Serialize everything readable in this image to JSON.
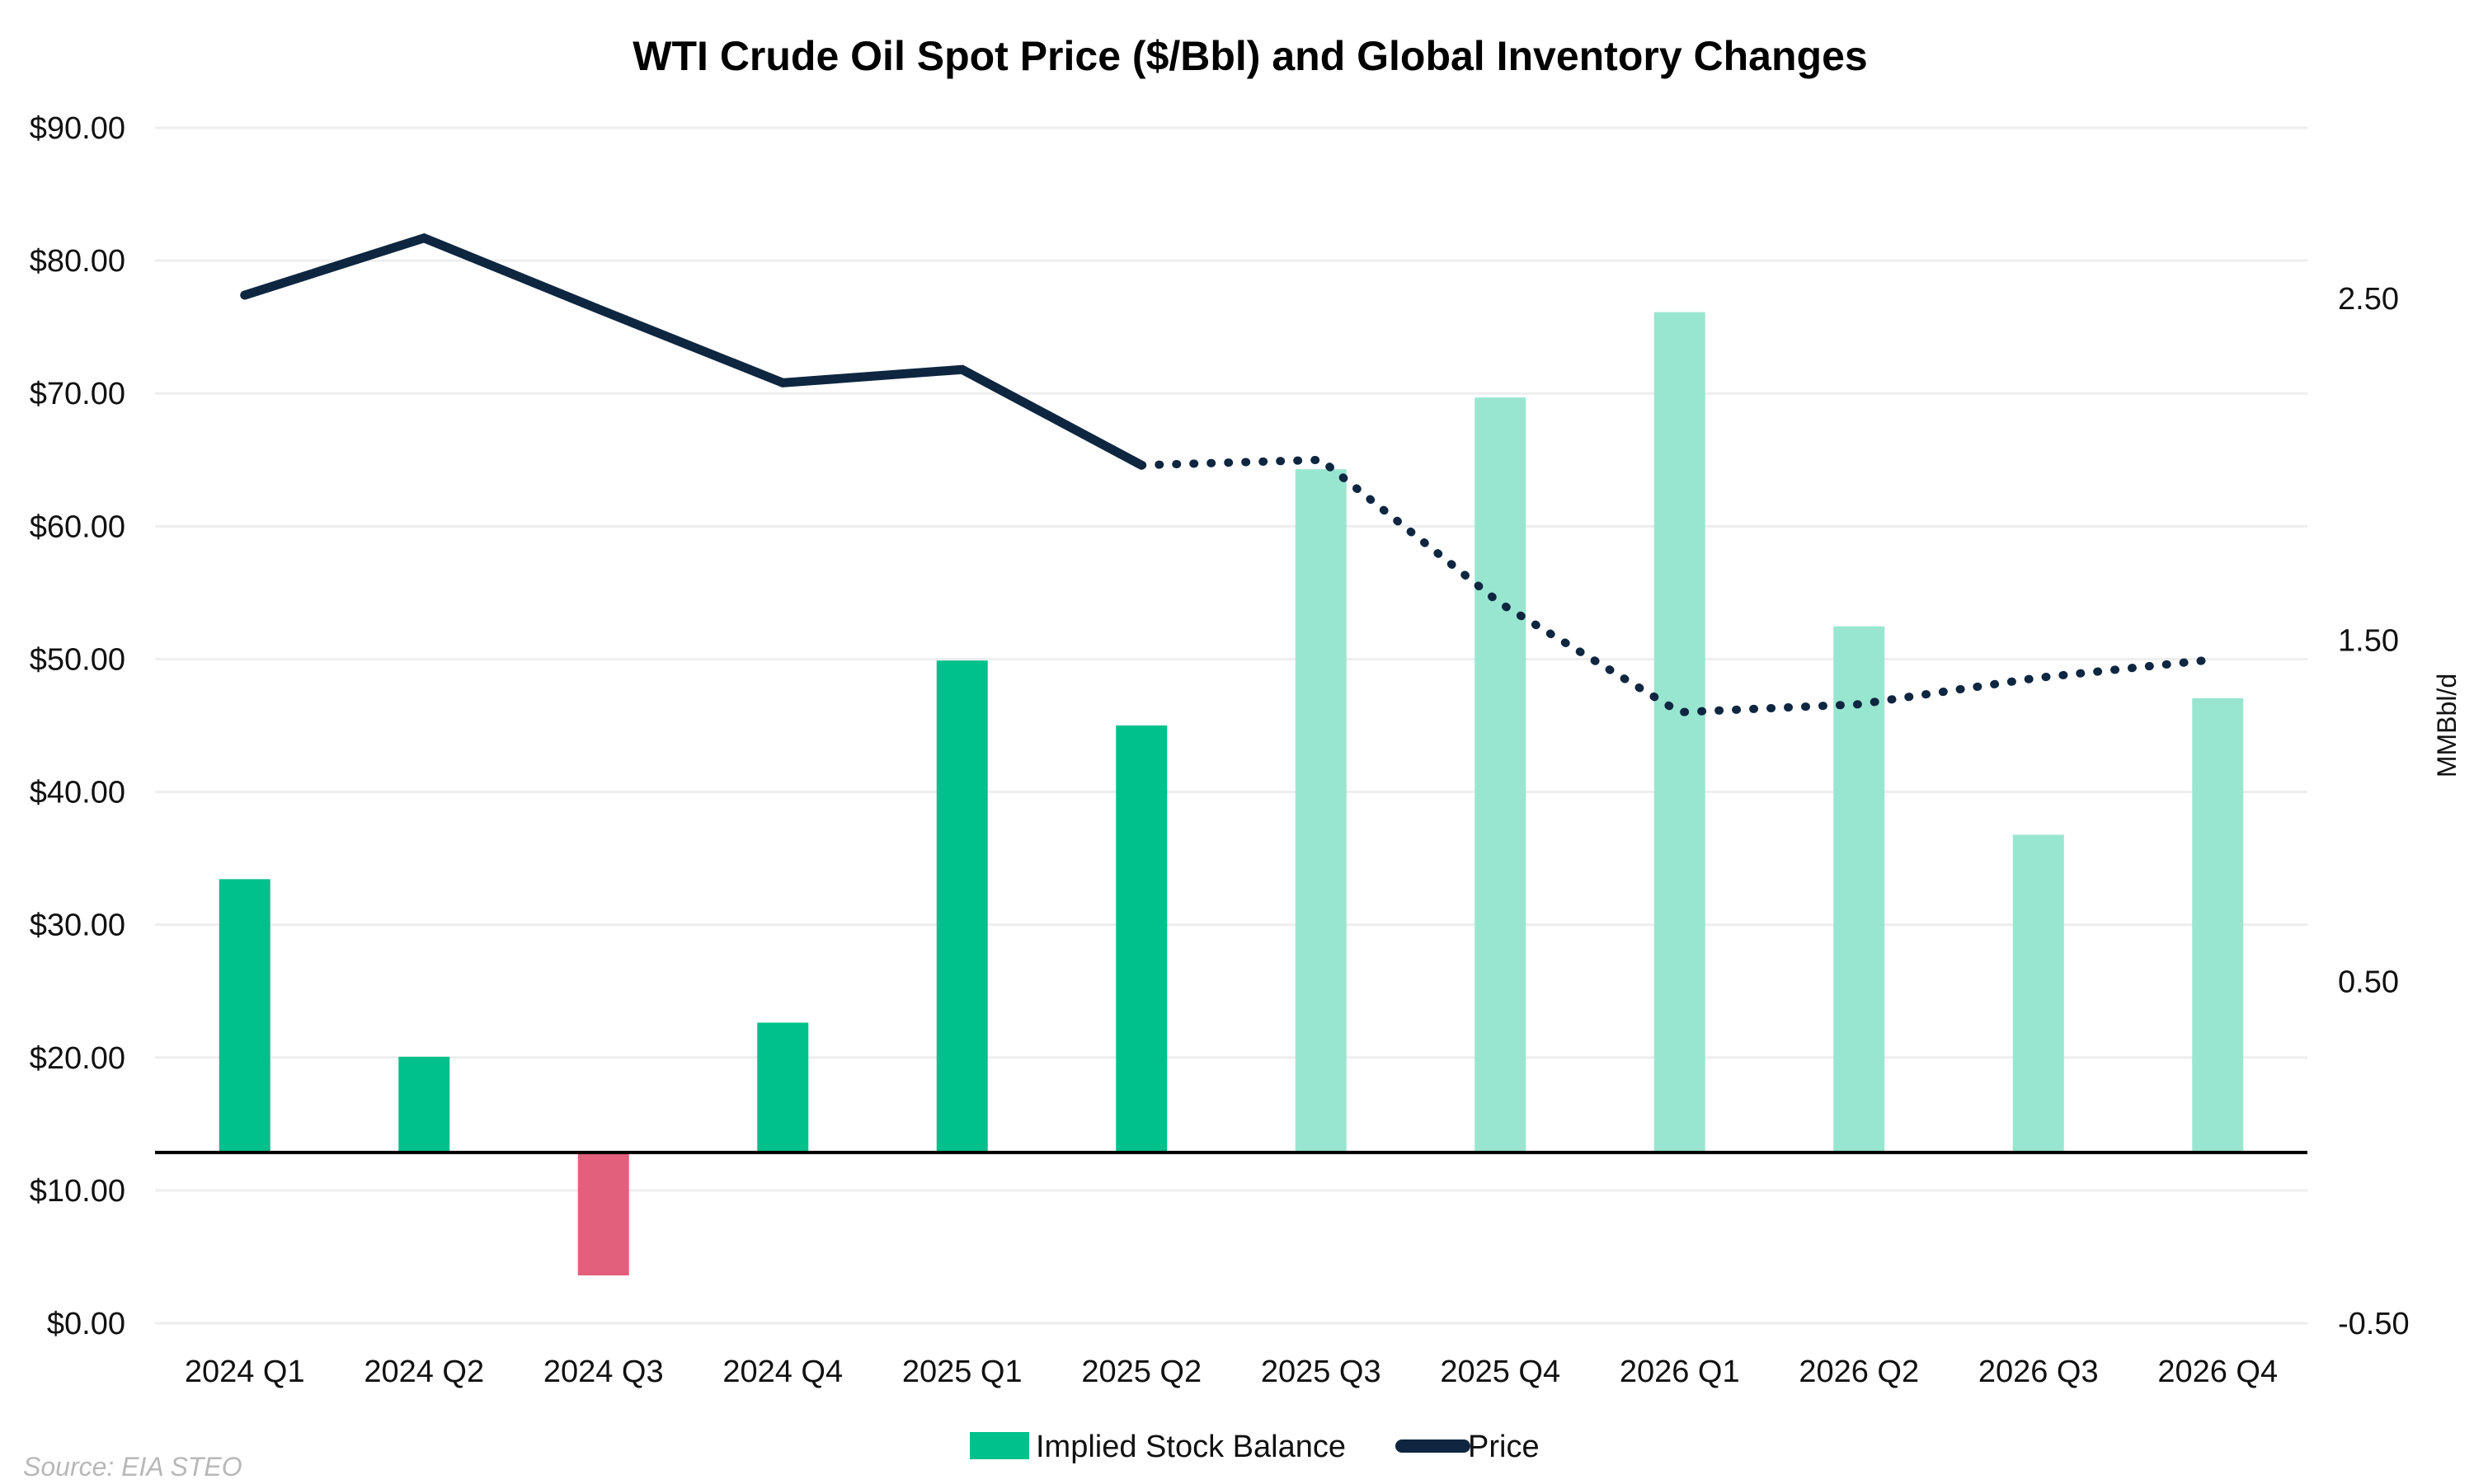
{
  "chart_data": {
    "type": "bar",
    "title": "WTI Crude Oil Spot Price ($/Bbl) and Global Inventory Changes",
    "xlabel": "",
    "ylabel_left": "",
    "ylabel_right": "MMBbl/d",
    "categories": [
      "2024 Q1",
      "2024 Q2",
      "2024 Q3",
      "2024 Q4",
      "2025 Q1",
      "2025 Q2",
      "2025 Q3",
      "2025 Q4",
      "2026 Q1",
      "2026 Q2",
      "2026 Q3",
      "2026 Q4"
    ],
    "left_axis": {
      "ylim": [
        0,
        90
      ],
      "ticks": [
        0,
        10,
        20,
        30,
        40,
        50,
        60,
        70,
        80,
        90
      ],
      "tick_labels": [
        "$0.00",
        "$10.00",
        "$20.00",
        "$30.00",
        "$40.00",
        "$50.00",
        "$60.00",
        "$70.00",
        "$80.00",
        "$90.00"
      ]
    },
    "right_axis": {
      "ylim": [
        -0.5,
        3.0
      ],
      "ticks": [
        -0.5,
        0.5,
        1.5,
        2.5
      ],
      "tick_labels": [
        "-0.50",
        "0.50",
        "1.50",
        "2.50"
      ]
    },
    "grid": true,
    "series": [
      {
        "name": "Implied Stock Balance",
        "type": "bar",
        "axis": "right",
        "values": [
          0.8,
          0.28,
          -0.36,
          0.38,
          1.44,
          1.25,
          2.0,
          2.21,
          2.46,
          1.54,
          0.93,
          1.33
        ],
        "forecast_from_index": 6
      },
      {
        "name": "Price",
        "type": "line",
        "axis": "left",
        "values": [
          77.4,
          81.7,
          76.2,
          70.8,
          71.8,
          64.6,
          65.0,
          54.2,
          46.0,
          46.6,
          48.6,
          50.0
        ],
        "forecast_from_index": 5
      }
    ],
    "legend": {
      "position": "bottom",
      "items": [
        "Implied Stock Balance",
        "Price"
      ]
    },
    "colors": {
      "bar_positive": "#00c08b",
      "bar_positive_forecast": "#99e6d0",
      "bar_negative": "#e2607b",
      "line": "#0e2640",
      "zero_line": "#000000",
      "grid": "#eeeeee"
    }
  },
  "source_note": "Source: EIA STEO"
}
